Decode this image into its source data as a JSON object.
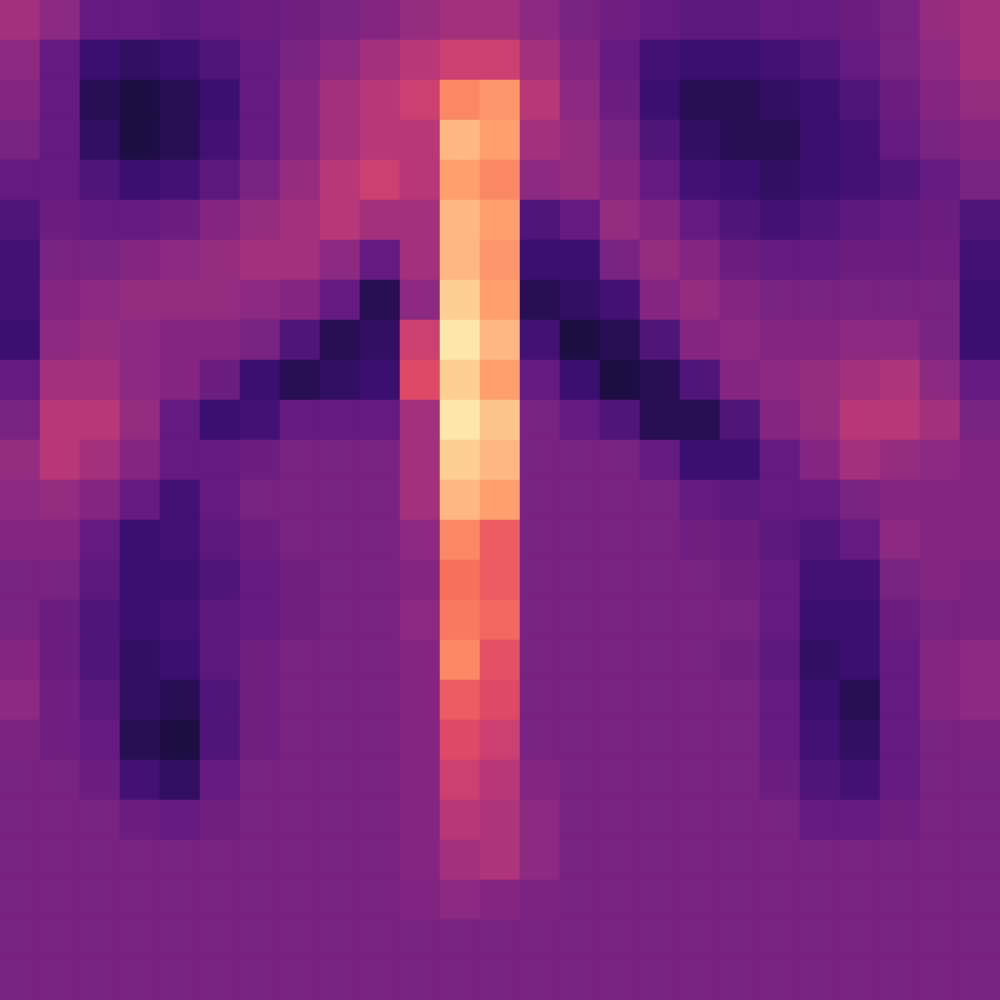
{
  "chart_data": {
    "type": "heatmap",
    "zlim": [
      0,
      1
    ],
    "tick_labels": false,
    "cells": [
      [
        0.45,
        0.4,
        0.3,
        0.3,
        0.28,
        0.3,
        0.32,
        0.33,
        0.35,
        0.38,
        0.42,
        0.45,
        0.45,
        0.4,
        0.35,
        0.33,
        0.3,
        0.28,
        0.28,
        0.3,
        0.3,
        0.32,
        0.35,
        0.42,
        0.45
      ],
      [
        0.4,
        0.3,
        0.2,
        0.18,
        0.2,
        0.25,
        0.3,
        0.35,
        0.4,
        0.45,
        0.5,
        0.55,
        0.55,
        0.45,
        0.38,
        0.3,
        0.22,
        0.2,
        0.2,
        0.22,
        0.25,
        0.3,
        0.35,
        0.4,
        0.45
      ],
      [
        0.38,
        0.3,
        0.15,
        0.12,
        0.15,
        0.2,
        0.3,
        0.38,
        0.45,
        0.5,
        0.55,
        0.75,
        0.78,
        0.5,
        0.4,
        0.32,
        0.2,
        0.15,
        0.15,
        0.18,
        0.2,
        0.25,
        0.32,
        0.38,
        0.42
      ],
      [
        0.35,
        0.3,
        0.18,
        0.12,
        0.15,
        0.22,
        0.3,
        0.38,
        0.45,
        0.5,
        0.5,
        0.85,
        0.8,
        0.45,
        0.42,
        0.35,
        0.25,
        0.18,
        0.15,
        0.15,
        0.2,
        0.22,
        0.3,
        0.35,
        0.38
      ],
      [
        0.3,
        0.3,
        0.25,
        0.2,
        0.22,
        0.28,
        0.35,
        0.42,
        0.5,
        0.55,
        0.5,
        0.8,
        0.75,
        0.4,
        0.42,
        0.38,
        0.3,
        0.22,
        0.2,
        0.18,
        0.2,
        0.22,
        0.25,
        0.3,
        0.35
      ],
      [
        0.25,
        0.32,
        0.3,
        0.3,
        0.32,
        0.38,
        0.42,
        0.45,
        0.5,
        0.45,
        0.45,
        0.85,
        0.8,
        0.25,
        0.3,
        0.42,
        0.38,
        0.3,
        0.25,
        0.22,
        0.25,
        0.28,
        0.3,
        0.32,
        0.25
      ],
      [
        0.22,
        0.35,
        0.35,
        0.38,
        0.4,
        0.42,
        0.45,
        0.45,
        0.4,
        0.3,
        0.45,
        0.85,
        0.78,
        0.2,
        0.2,
        0.35,
        0.42,
        0.38,
        0.32,
        0.3,
        0.3,
        0.32,
        0.32,
        0.33,
        0.22
      ],
      [
        0.22,
        0.38,
        0.4,
        0.42,
        0.42,
        0.42,
        0.4,
        0.38,
        0.3,
        0.15,
        0.4,
        0.9,
        0.8,
        0.15,
        0.18,
        0.22,
        0.38,
        0.42,
        0.38,
        0.35,
        0.35,
        0.35,
        0.35,
        0.35,
        0.2
      ],
      [
        0.2,
        0.4,
        0.42,
        0.4,
        0.38,
        0.38,
        0.35,
        0.25,
        0.15,
        0.18,
        0.55,
        0.95,
        0.85,
        0.22,
        0.12,
        0.15,
        0.25,
        0.38,
        0.4,
        0.38,
        0.38,
        0.4,
        0.4,
        0.35,
        0.2
      ],
      [
        0.3,
        0.45,
        0.45,
        0.4,
        0.38,
        0.32,
        0.2,
        0.15,
        0.18,
        0.2,
        0.6,
        0.9,
        0.8,
        0.3,
        0.2,
        0.12,
        0.15,
        0.25,
        0.38,
        0.4,
        0.42,
        0.45,
        0.48,
        0.4,
        0.3
      ],
      [
        0.35,
        0.5,
        0.5,
        0.42,
        0.3,
        0.2,
        0.22,
        0.3,
        0.3,
        0.3,
        0.45,
        0.95,
        0.88,
        0.35,
        0.3,
        0.25,
        0.15,
        0.15,
        0.25,
        0.38,
        0.42,
        0.5,
        0.5,
        0.45,
        0.35
      ],
      [
        0.42,
        0.5,
        0.45,
        0.38,
        0.3,
        0.3,
        0.32,
        0.35,
        0.35,
        0.35,
        0.45,
        0.9,
        0.85,
        0.35,
        0.35,
        0.35,
        0.3,
        0.2,
        0.2,
        0.3,
        0.38,
        0.45,
        0.42,
        0.4,
        0.38
      ],
      [
        0.4,
        0.42,
        0.38,
        0.3,
        0.22,
        0.3,
        0.35,
        0.35,
        0.35,
        0.35,
        0.45,
        0.85,
        0.8,
        0.35,
        0.35,
        0.35,
        0.35,
        0.3,
        0.28,
        0.3,
        0.3,
        0.35,
        0.38,
        0.38,
        0.38
      ],
      [
        0.38,
        0.38,
        0.3,
        0.2,
        0.22,
        0.28,
        0.32,
        0.35,
        0.35,
        0.35,
        0.4,
        0.75,
        0.65,
        0.35,
        0.35,
        0.35,
        0.35,
        0.33,
        0.32,
        0.28,
        0.25,
        0.3,
        0.4,
        0.38,
        0.38
      ],
      [
        0.35,
        0.35,
        0.28,
        0.2,
        0.2,
        0.25,
        0.3,
        0.33,
        0.35,
        0.35,
        0.38,
        0.7,
        0.65,
        0.35,
        0.35,
        0.35,
        0.35,
        0.35,
        0.33,
        0.3,
        0.22,
        0.22,
        0.35,
        0.38,
        0.36
      ],
      [
        0.35,
        0.32,
        0.25,
        0.2,
        0.22,
        0.28,
        0.3,
        0.33,
        0.35,
        0.35,
        0.4,
        0.72,
        0.68,
        0.35,
        0.35,
        0.35,
        0.35,
        0.35,
        0.35,
        0.3,
        0.2,
        0.2,
        0.32,
        0.35,
        0.36
      ],
      [
        0.38,
        0.32,
        0.25,
        0.18,
        0.2,
        0.28,
        0.33,
        0.35,
        0.35,
        0.35,
        0.38,
        0.75,
        0.62,
        0.35,
        0.35,
        0.35,
        0.35,
        0.35,
        0.33,
        0.28,
        0.18,
        0.2,
        0.3,
        0.38,
        0.4
      ],
      [
        0.4,
        0.33,
        0.28,
        0.18,
        0.15,
        0.25,
        0.33,
        0.35,
        0.35,
        0.35,
        0.38,
        0.65,
        0.6,
        0.35,
        0.35,
        0.35,
        0.35,
        0.35,
        0.35,
        0.3,
        0.2,
        0.15,
        0.3,
        0.38,
        0.4
      ],
      [
        0.36,
        0.33,
        0.3,
        0.15,
        0.12,
        0.25,
        0.33,
        0.35,
        0.35,
        0.35,
        0.38,
        0.6,
        0.55,
        0.35,
        0.35,
        0.35,
        0.35,
        0.35,
        0.35,
        0.3,
        0.22,
        0.18,
        0.3,
        0.35,
        0.36
      ],
      [
        0.35,
        0.35,
        0.32,
        0.22,
        0.18,
        0.3,
        0.35,
        0.35,
        0.35,
        0.35,
        0.38,
        0.55,
        0.5,
        0.38,
        0.35,
        0.35,
        0.35,
        0.35,
        0.35,
        0.32,
        0.25,
        0.22,
        0.3,
        0.35,
        0.35
      ],
      [
        0.35,
        0.35,
        0.35,
        0.32,
        0.3,
        0.33,
        0.35,
        0.35,
        0.35,
        0.35,
        0.38,
        0.5,
        0.48,
        0.4,
        0.35,
        0.35,
        0.35,
        0.35,
        0.35,
        0.35,
        0.3,
        0.3,
        0.33,
        0.35,
        0.35
      ],
      [
        0.35,
        0.35,
        0.35,
        0.35,
        0.35,
        0.35,
        0.35,
        0.35,
        0.35,
        0.35,
        0.38,
        0.45,
        0.48,
        0.4,
        0.35,
        0.35,
        0.35,
        0.35,
        0.35,
        0.35,
        0.35,
        0.35,
        0.35,
        0.35,
        0.35
      ],
      [
        0.35,
        0.35,
        0.35,
        0.35,
        0.35,
        0.35,
        0.35,
        0.35,
        0.35,
        0.35,
        0.37,
        0.4,
        0.38,
        0.36,
        0.35,
        0.35,
        0.35,
        0.35,
        0.35,
        0.35,
        0.35,
        0.35,
        0.35,
        0.35,
        0.35
      ],
      [
        0.35,
        0.35,
        0.35,
        0.35,
        0.35,
        0.35,
        0.35,
        0.35,
        0.35,
        0.35,
        0.35,
        0.35,
        0.35,
        0.35,
        0.35,
        0.35,
        0.35,
        0.35,
        0.35,
        0.35,
        0.35,
        0.35,
        0.35,
        0.35,
        0.35
      ],
      [
        0.35,
        0.35,
        0.35,
        0.35,
        0.35,
        0.35,
        0.35,
        0.35,
        0.35,
        0.35,
        0.35,
        0.35,
        0.35,
        0.35,
        0.35,
        0.35,
        0.35,
        0.35,
        0.35,
        0.35,
        0.35,
        0.35,
        0.35,
        0.35,
        0.35
      ]
    ]
  }
}
